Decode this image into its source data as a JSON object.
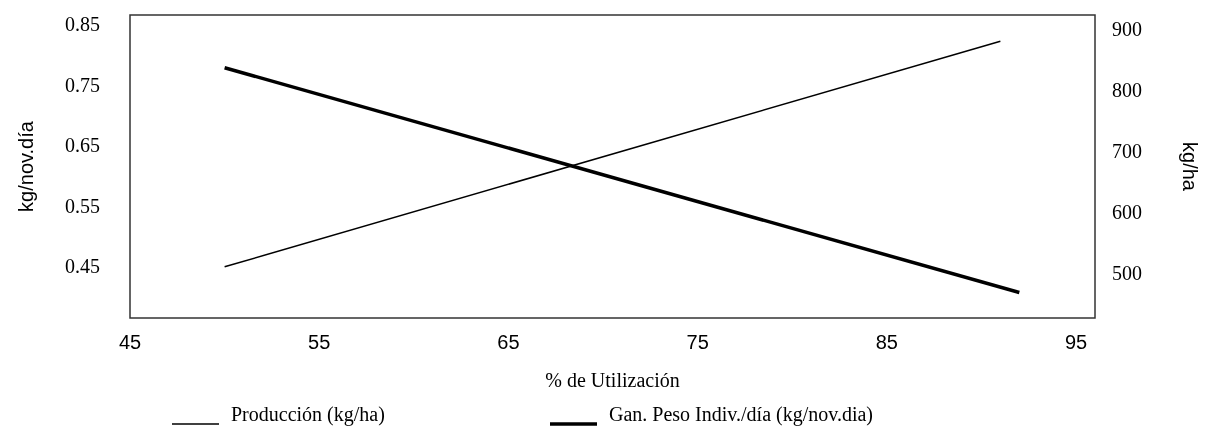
{
  "chart_data": {
    "type": "line",
    "xlabel": "% de Utilización",
    "ylabel": "kg/nov.día",
    "y2label": "kg/ha",
    "series": [
      {
        "name": "Producción (kg/ha)",
        "color": "#000000",
        "x": [
          50,
          91
        ],
        "values": [
          510,
          880
        ],
        "axis": "y2"
      },
      {
        "name": "Gan. Peso Indiv./día (kg/nov.dia)",
        "color": "#000000",
        "x": [
          50,
          92
        ],
        "values": [
          0.778,
          0.407
        ],
        "axis": "y"
      }
    ],
    "xlim": [
      45,
      96
    ],
    "xticks": [
      45,
      55,
      65,
      75,
      85,
      95
    ],
    "ylim": [
      0.365,
      0.865
    ],
    "yticks": [
      {
        "value": 0.45,
        "label": "0.45"
      },
      {
        "value": 0.55,
        "label": "0.55"
      },
      {
        "value": 0.65,
        "label": "0.65"
      },
      {
        "value": 0.75,
        "label": "0.75"
      },
      {
        "value": 0.85,
        "label": "0.85"
      }
    ],
    "y2lim": [
      426,
      923
    ],
    "y2ticks": [
      500,
      600,
      700,
      800,
      900
    ],
    "legend": "bottom",
    "grid": false,
    "line_style": "solid"
  }
}
